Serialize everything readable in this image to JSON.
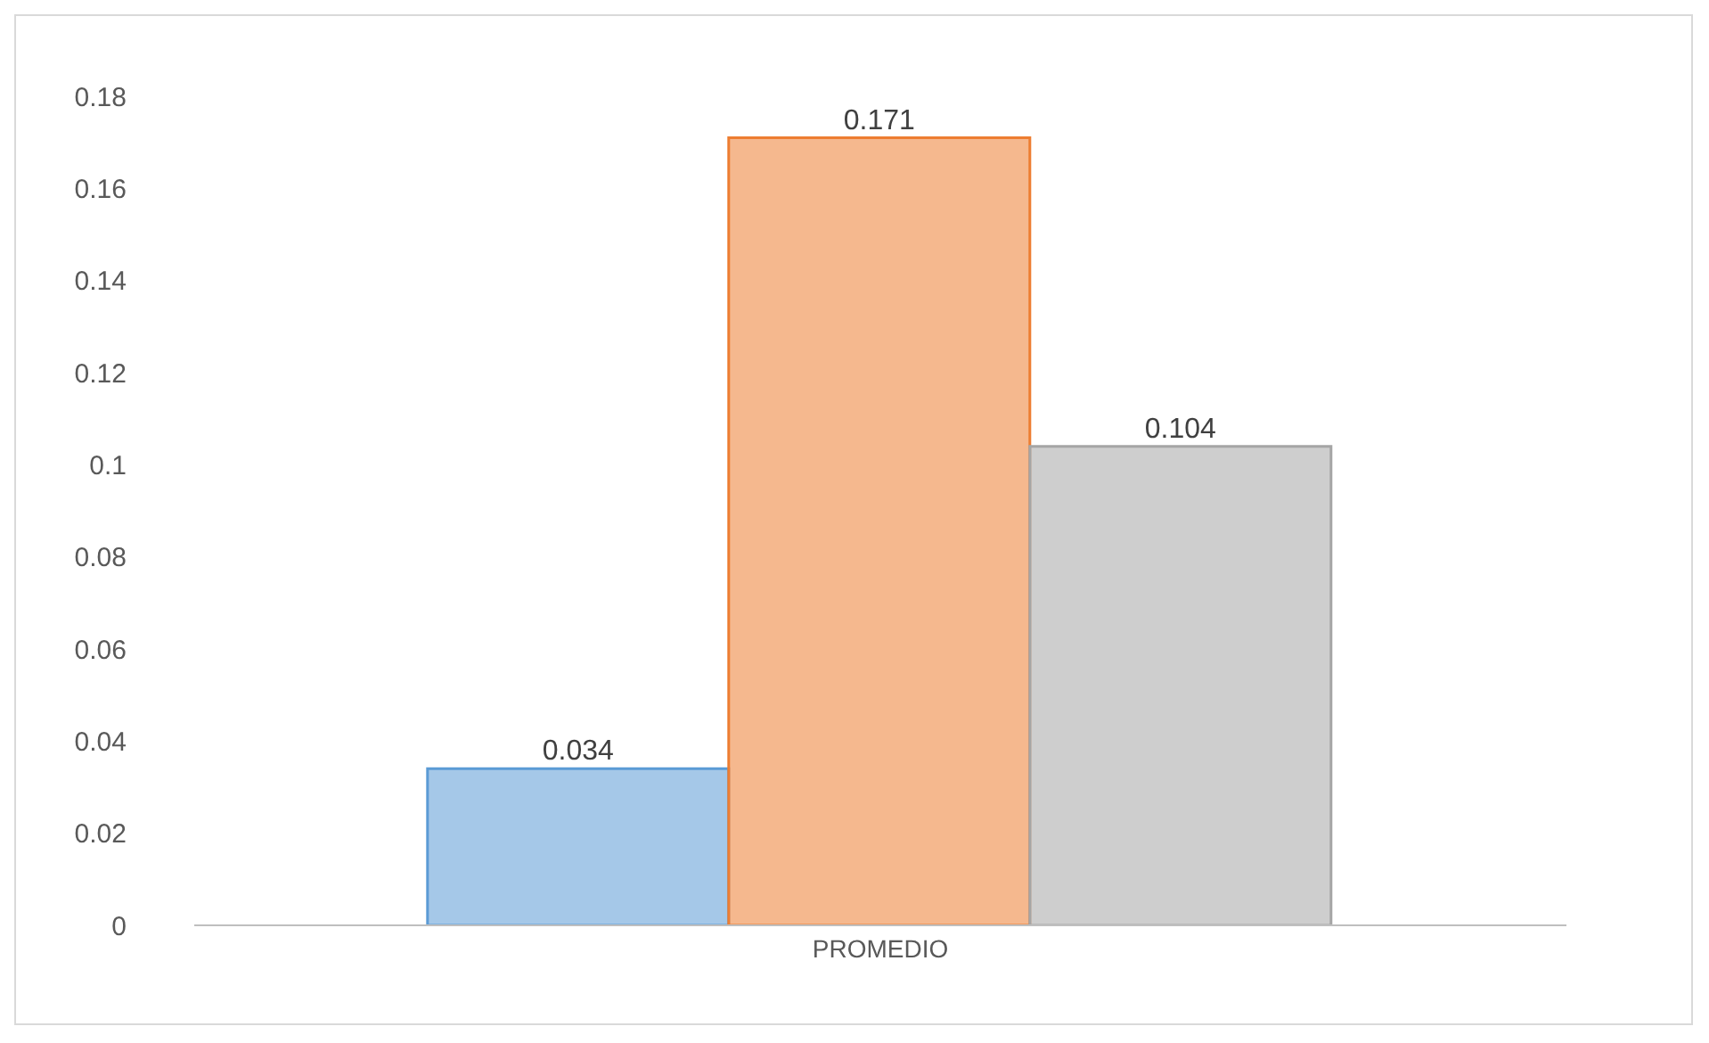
{
  "chart_data": {
    "type": "bar",
    "categories": [
      "PROMEDIO"
    ],
    "series": [
      {
        "color": "#5b9bd5",
        "values": [
          0.034
        ]
      },
      {
        "color": "#ed7d31",
        "values": [
          0.171
        ]
      },
      {
        "color": "#a5a5a5",
        "values": [
          0.104
        ]
      }
    ],
    "ylim": [
      0,
      0.18
    ],
    "yticks": [
      0,
      0.02,
      0.04,
      0.06,
      0.08,
      0.1,
      0.12,
      0.14,
      0.16,
      0.18
    ],
    "grid": false,
    "legend": false,
    "data_labels": true
  }
}
